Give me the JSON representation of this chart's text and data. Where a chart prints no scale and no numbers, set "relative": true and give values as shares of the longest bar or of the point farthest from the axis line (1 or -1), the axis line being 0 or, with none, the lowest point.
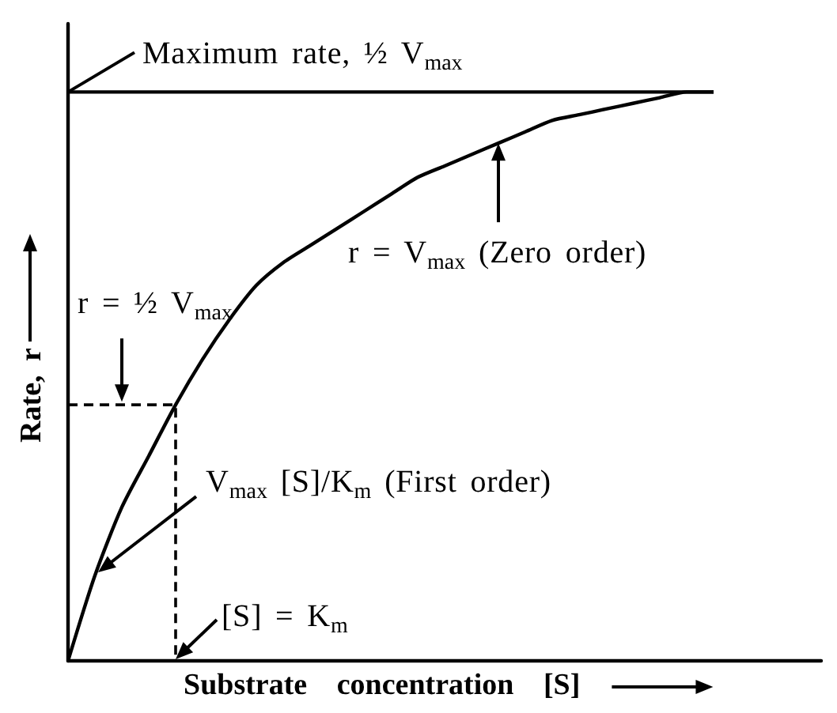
{
  "chart_data": {
    "type": "line",
    "relative": true,
    "marker": "none",
    "xlabel": "Substrate concentration [S]",
    "ylabel": "Rate, r",
    "categories": [
      null,
      null,
      null,
      null,
      null,
      null,
      null,
      null,
      null,
      null,
      null,
      null,
      null,
      null,
      null,
      null,
      null,
      null,
      null,
      null,
      null,
      null,
      null,
      null,
      null,
      null,
      null,
      null,
      null
    ],
    "series": [
      {
        "color": "#000000",
        "values": [
          0,
          0.15,
          0.27,
          0.36,
          0.45,
          0.53,
          0.6,
          0.66,
          0.7,
          0.73,
          0.76,
          0.79,
          0.82,
          0.85,
          0.87,
          0.89,
          0.91,
          0.93,
          0.95,
          0.96,
          0.97,
          0.98,
          0.99,
          1,
          1,
          null,
          null,
          null,
          null
        ]
      },
      {
        "color": "#000000",
        "values": [
          1,
          1,
          1,
          1,
          1,
          1,
          1,
          1,
          1,
          1,
          1,
          1,
          1,
          1,
          1,
          1,
          1,
          1,
          1,
          1,
          1,
          1,
          1,
          1,
          1,
          null,
          null,
          null,
          null
        ]
      },
      {
        "type": "step",
        "color": "#000000",
        "line_style": "dashed",
        "values": [
          0.45,
          0.45,
          0.45,
          0.45,
          0,
          null,
          null,
          null,
          null,
          null,
          null,
          null,
          null,
          null,
          null,
          null,
          null,
          null,
          null,
          null,
          null,
          null,
          null,
          null,
          null,
          null,
          null,
          null,
          null
        ]
      }
    ],
    "annotations": [
      "Maximum rate, ½ V$_{max}$",
      "r = V$_{max}$ (Zero order)",
      "r = ½ V$_{max}$",
      "V$_{max}$ [S]/K$_{m}$ (First order)",
      "[S] = K$_{m}$"
    ]
  }
}
